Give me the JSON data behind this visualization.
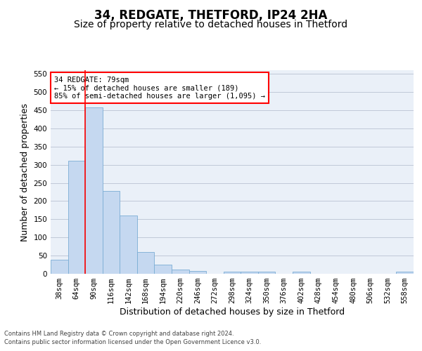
{
  "title": "34, REDGATE, THETFORD, IP24 2HA",
  "subtitle": "Size of property relative to detached houses in Thetford",
  "xlabel": "Distribution of detached houses by size in Thetford",
  "ylabel": "Number of detached properties",
  "categories": [
    "38sqm",
    "64sqm",
    "90sqm",
    "116sqm",
    "142sqm",
    "168sqm",
    "194sqm",
    "220sqm",
    "246sqm",
    "272sqm",
    "298sqm",
    "324sqm",
    "350sqm",
    "376sqm",
    "402sqm",
    "428sqm",
    "454sqm",
    "480sqm",
    "506sqm",
    "532sqm",
    "558sqm"
  ],
  "values": [
    38,
    311,
    457,
    228,
    161,
    59,
    25,
    11,
    8,
    0,
    5,
    6,
    6,
    0,
    5,
    0,
    0,
    0,
    0,
    0,
    5
  ],
  "bar_color": "#c5d8f0",
  "bar_edge_color": "#7aadd4",
  "grid_color": "#c0c8d8",
  "background_color": "#eaf0f8",
  "vline_color": "red",
  "vline_x": 1.5,
  "annotation_text": "34 REDGATE: 79sqm\n← 15% of detached houses are smaller (189)\n85% of semi-detached houses are larger (1,095) →",
  "annotation_box_color": "white",
  "annotation_box_edge_color": "red",
  "ylim": [
    0,
    560
  ],
  "yticks": [
    0,
    50,
    100,
    150,
    200,
    250,
    300,
    350,
    400,
    450,
    500,
    550
  ],
  "footer_line1": "Contains HM Land Registry data © Crown copyright and database right 2024.",
  "footer_line2": "Contains public sector information licensed under the Open Government Licence v3.0.",
  "title_fontsize": 12,
  "subtitle_fontsize": 10,
  "tick_fontsize": 7.5,
  "ylabel_fontsize": 9,
  "xlabel_fontsize": 9,
  "annotation_fontsize": 7.5,
  "footer_fontsize": 6
}
